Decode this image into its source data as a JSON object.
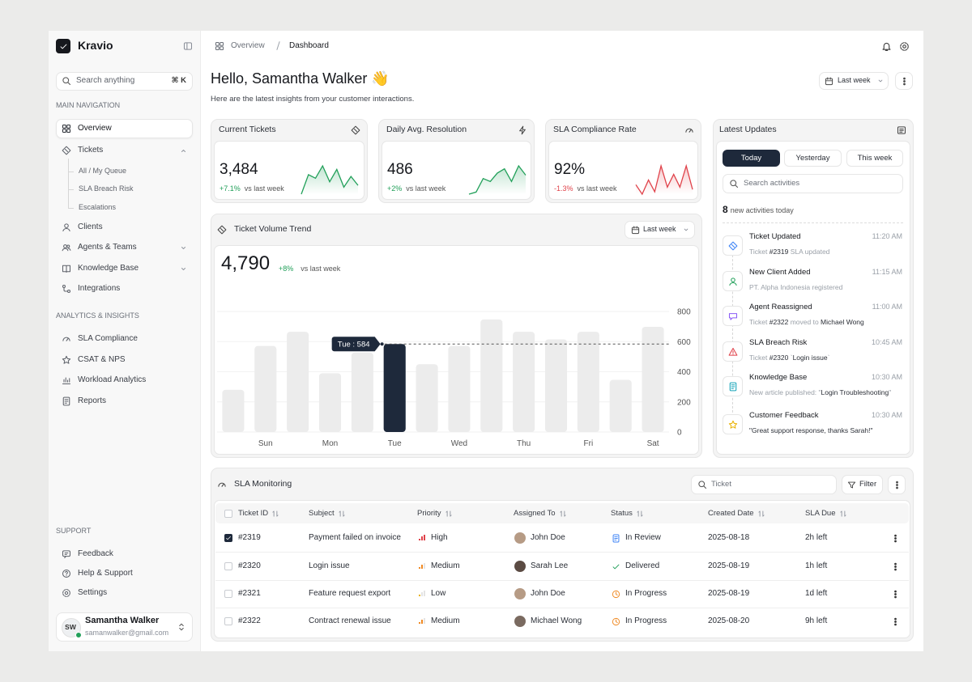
{
  "app": {
    "brand": "Kravio",
    "search_placeholder": "Search anything",
    "shortcut": "⌘ K"
  },
  "sidebar": {
    "sections": [
      {
        "title": "MAIN NAVIGATION",
        "items": [
          {
            "label": "Overview",
            "active": true
          },
          {
            "label": "Tickets",
            "expanded": true,
            "children": [
              "All / My Queue",
              "SLA Breach Risk",
              "Escalations"
            ]
          },
          {
            "label": "Clients"
          },
          {
            "label": "Agents & Teams",
            "collapsible": true
          },
          {
            "label": "Knowledge Base",
            "collapsible": true
          },
          {
            "label": "Integrations"
          }
        ]
      },
      {
        "title": "ANALYTICS & INSIGHTS",
        "items": [
          {
            "label": "SLA Compliance"
          },
          {
            "label": "CSAT & NPS"
          },
          {
            "label": "Workload Analytics"
          },
          {
            "label": "Reports"
          }
        ]
      }
    ],
    "support": {
      "title": "SUPPORT",
      "items": [
        "Feedback",
        "Help & Support",
        "Settings"
      ]
    },
    "user": {
      "initials": "SW",
      "name": "Samantha Walker",
      "email": "samanwalker@gmail.com"
    }
  },
  "breadcrumb": [
    "Overview",
    "Dashboard"
  ],
  "header": {
    "greeting": "Hello, Samantha Walker 👋",
    "subtitle": "Here are the latest insights from your customer interactions.",
    "range": "Last week"
  },
  "kpis": [
    {
      "title": "Current Tickets",
      "value": "3,484",
      "change": "+7.1%",
      "change_note": "vs last week",
      "color": "#22a05a",
      "sparkline": [
        0,
        55,
        45,
        80,
        35,
        70,
        20,
        50,
        25
      ]
    },
    {
      "title": "Daily Avg. Resolution",
      "value": "486",
      "change": "+2%",
      "change_note": "vs last week",
      "color": "#22a05a",
      "sparkline": [
        5,
        10,
        42,
        35,
        55,
        65,
        35,
        72,
        50
      ]
    },
    {
      "title": "SLA Compliance Rate",
      "value": "92%",
      "change": "-1.3%",
      "change_note": "vs last week",
      "color": "#e0424a",
      "sparkline": [
        40,
        20,
        50,
        25,
        80,
        35,
        62,
        35,
        80,
        30
      ]
    }
  ],
  "chart_data": {
    "type": "bar",
    "title": "Ticket Volume Trend",
    "range": "Last week",
    "total": "4,790",
    "change": "+8%",
    "change_note": "vs last week",
    "categories": [
      null,
      "Sun",
      null,
      "Mon",
      null,
      "Tue",
      null,
      "Wed",
      null,
      "Thu",
      null,
      "Fri",
      null,
      "Sat"
    ],
    "values": [
      280,
      571,
      665,
      390,
      527,
      584,
      450,
      571,
      747,
      665,
      615,
      665,
      346,
      698
    ],
    "color": "#ececec",
    "highlight": "Tue",
    "highlight_color": "#1e293b",
    "tooltip": "Tue : 584",
    "ylim": [
      0,
      800
    ],
    "yticks": [
      0,
      200,
      400,
      600,
      800
    ],
    "y_axis_side": "right",
    "grid": true
  },
  "updates": {
    "title": "Latest Updates",
    "tabs": [
      "Today",
      "Yesterday",
      "This week"
    ],
    "active_tab": "Today",
    "search_placeholder": "Search activities",
    "count": "8",
    "count_note": "new activities today",
    "items": [
      {
        "title": "Ticket Updated",
        "time": "11:20 AM",
        "detail": [
          "Ticket ",
          "#2319",
          " SLA updated"
        ]
      },
      {
        "title": "New Client Added",
        "time": "11:15 AM",
        "detail": [
          "PT. Alpha Indonesia registered"
        ]
      },
      {
        "title": "Agent Reassigned",
        "time": "11:00 AM",
        "detail": [
          "Ticket ",
          "#2322",
          " moved to ",
          "Michael Wong"
        ]
      },
      {
        "title": "SLA Breach Risk",
        "time": "10:45 AM",
        "detail": [
          "Ticket ",
          "#2320",
          " `",
          "Login issue",
          "`"
        ]
      },
      {
        "title": "Knowledge Base",
        "time": "10:30 AM",
        "detail": [
          "New article published: \"",
          "Login Troubleshooting",
          "\""
        ]
      },
      {
        "title": "Customer Feedback",
        "time": "10:30 AM",
        "detail": [
          "",
          "\"Great support response, thanks Sarah!\""
        ]
      }
    ]
  },
  "sla": {
    "title": "SLA Monitoring",
    "search_placeholder": "Ticket",
    "filter": "Filter",
    "columns": [
      "Ticket ID",
      "Subject",
      "Priority",
      "Assigned To",
      "Status",
      "Created Date",
      "SLA Due"
    ],
    "rows": [
      {
        "checked": true,
        "id": "#2319",
        "subject": "Payment failed on invoice",
        "priority": "High",
        "assignee": "John Doe",
        "status": "In Review",
        "created": "2025-08-18",
        "due": "2h left"
      },
      {
        "checked": false,
        "id": "#2320",
        "subject": "Login issue",
        "priority": "Medium",
        "assignee": "Sarah Lee",
        "status": "Delivered",
        "created": "2025-08-19",
        "due": "1h left"
      },
      {
        "checked": false,
        "id": "#2321",
        "subject": "Feature request export",
        "priority": "Low",
        "assignee": "John Doe",
        "status": "In Progress",
        "created": "2025-08-19",
        "due": "1d left"
      },
      {
        "checked": false,
        "id": "#2322",
        "subject": "Contract renewal issue",
        "priority": "Medium",
        "assignee": "Michael Wong",
        "status": "In Progress",
        "created": "2025-08-20",
        "due": "9h left"
      }
    ]
  }
}
